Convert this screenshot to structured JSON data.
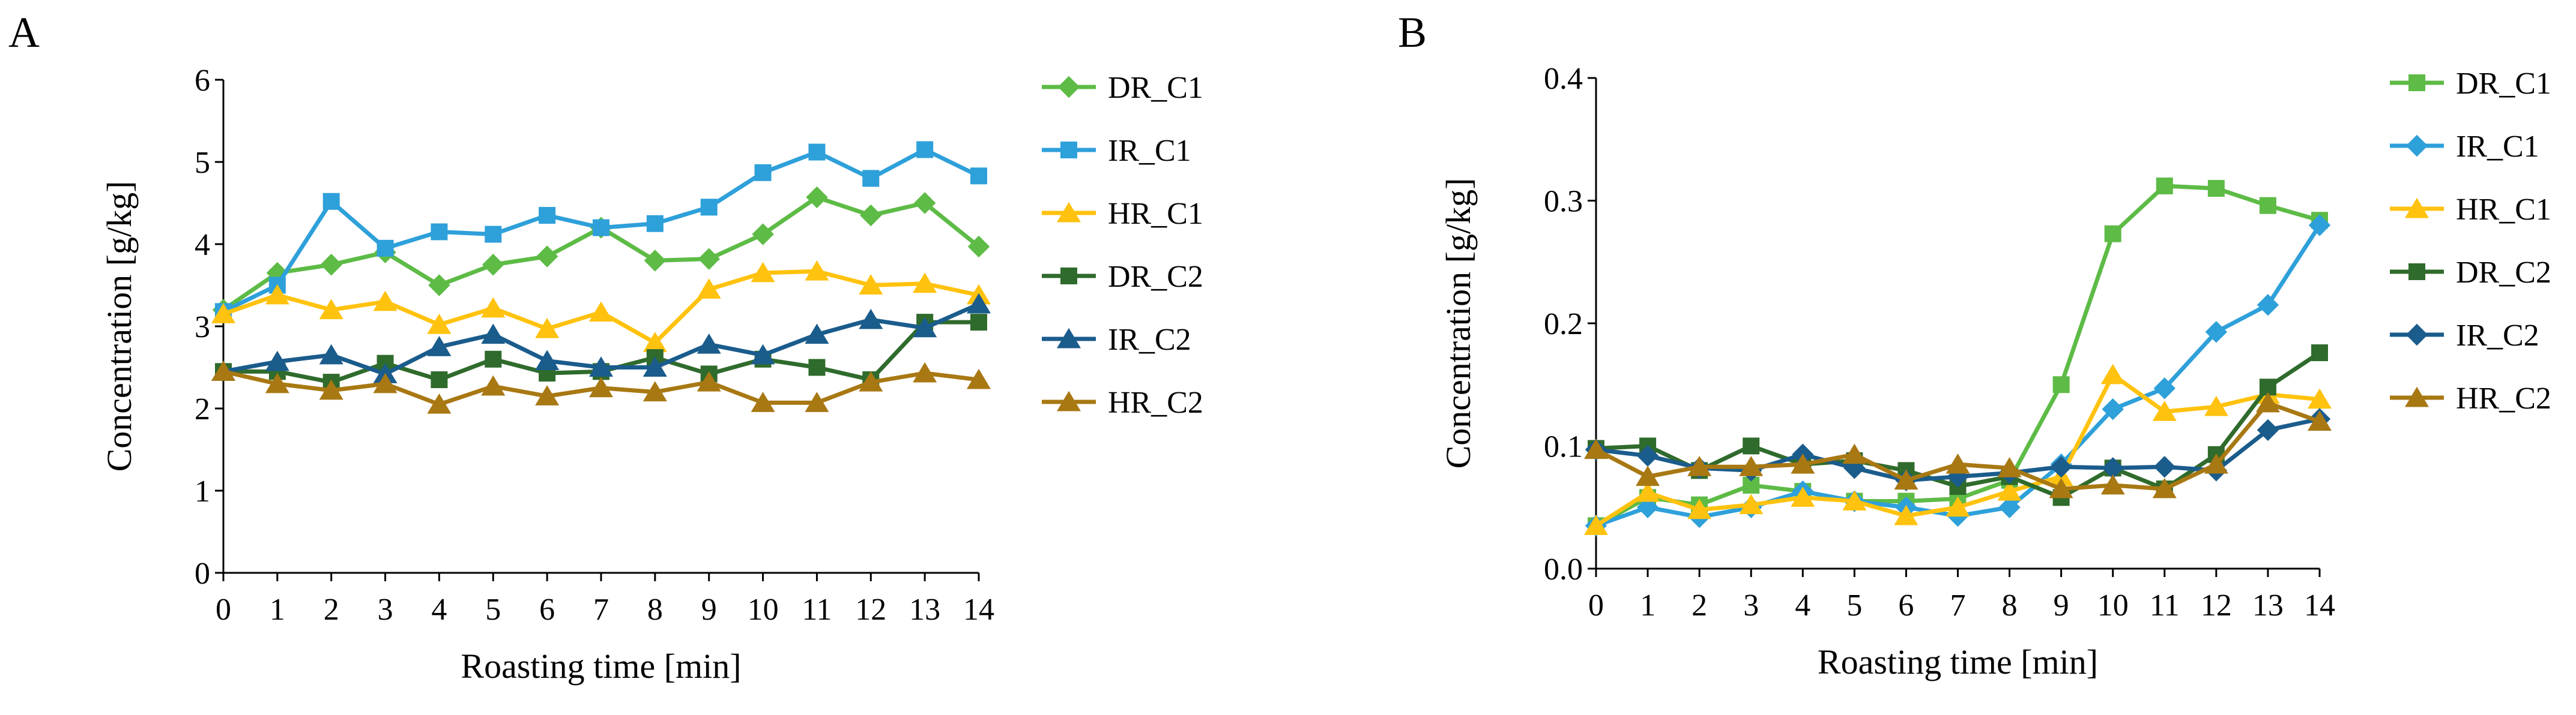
{
  "chart_data": [
    {
      "panel_label": "A",
      "type": "line",
      "xlabel": "Roasting time [min]",
      "ylabel": "Concentration [g/kg]",
      "x": [
        0,
        1,
        2,
        3,
        4,
        5,
        6,
        7,
        8,
        9,
        10,
        11,
        12,
        13,
        14
      ],
      "xlim": [
        0,
        14
      ],
      "ylim": [
        0,
        6
      ],
      "yticks": [
        0,
        1,
        2,
        3,
        4,
        5,
        6
      ],
      "ytick_labels": [
        "0",
        "1",
        "2",
        "3",
        "4",
        "5",
        "6"
      ],
      "grid": false,
      "legend_position": "right",
      "series": [
        {
          "name": "DR_C1",
          "color": "#5DBB46",
          "marker": "diamond",
          "values": [
            3.2,
            3.65,
            3.75,
            3.9,
            3.5,
            3.75,
            3.85,
            4.2,
            3.8,
            3.82,
            4.12,
            4.57,
            4.35,
            4.5,
            3.97
          ]
        },
        {
          "name": "IR_C1",
          "color": "#2EA0DA",
          "marker": "square",
          "values": [
            3.18,
            3.5,
            4.52,
            3.95,
            4.15,
            4.12,
            4.35,
            4.2,
            4.25,
            4.45,
            4.87,
            5.12,
            4.8,
            5.15,
            4.83
          ]
        },
        {
          "name": "HR_C1",
          "color": "#FFC20E",
          "marker": "triangle",
          "values": [
            3.15,
            3.38,
            3.2,
            3.3,
            3.02,
            3.22,
            2.97,
            3.17,
            2.8,
            3.45,
            3.65,
            3.67,
            3.5,
            3.52,
            3.38
          ]
        },
        {
          "name": "DR_C2",
          "color": "#2F6B2C",
          "marker": "square",
          "values": [
            2.45,
            2.45,
            2.32,
            2.55,
            2.35,
            2.6,
            2.43,
            2.45,
            2.62,
            2.42,
            2.6,
            2.5,
            2.35,
            3.05,
            3.05
          ]
        },
        {
          "name": "IR_C2",
          "color": "#1A5C8C",
          "marker": "triangle",
          "values": [
            2.45,
            2.57,
            2.65,
            2.42,
            2.75,
            2.9,
            2.58,
            2.5,
            2.5,
            2.78,
            2.65,
            2.9,
            3.08,
            2.98,
            3.27
          ]
        },
        {
          "name": "HR_C2",
          "color": "#A87813",
          "marker": "triangle",
          "values": [
            2.45,
            2.3,
            2.22,
            2.3,
            2.05,
            2.27,
            2.15,
            2.25,
            2.2,
            2.32,
            2.07,
            2.07,
            2.32,
            2.43,
            2.35
          ]
        }
      ]
    },
    {
      "panel_label": "B",
      "type": "line",
      "xlabel": "Roasting time [min]",
      "ylabel": "Concentration [g/kg]",
      "x": [
        0,
        1,
        2,
        3,
        4,
        5,
        6,
        7,
        8,
        9,
        10,
        11,
        12,
        13,
        14
      ],
      "xlim": [
        0,
        14
      ],
      "ylim": [
        0,
        0.4
      ],
      "yticks": [
        0,
        0.1,
        0.2,
        0.3,
        0.4
      ],
      "ytick_labels": [
        "0.0",
        "0.1",
        "0.2",
        "0.3",
        "0.4"
      ],
      "grid": false,
      "legend_position": "right",
      "series": [
        {
          "name": "DR_C1",
          "color": "#5DBB46",
          "marker": "square",
          "values": [
            0.035,
            0.058,
            0.052,
            0.068,
            0.063,
            0.055,
            0.055,
            0.057,
            0.072,
            0.15,
            0.273,
            0.312,
            0.31,
            0.296,
            0.284
          ]
        },
        {
          "name": "IR_C1",
          "color": "#2EA0DA",
          "marker": "diamond",
          "values": [
            0.035,
            0.05,
            0.042,
            0.05,
            0.063,
            0.055,
            0.05,
            0.043,
            0.05,
            0.085,
            0.13,
            0.147,
            0.193,
            0.215,
            0.28
          ]
        },
        {
          "name": "HR_C1",
          "color": "#FFC20E",
          "marker": "triangle",
          "values": [
            0.035,
            0.062,
            0.048,
            0.052,
            0.058,
            0.055,
            0.043,
            0.05,
            0.063,
            0.075,
            0.158,
            0.128,
            0.132,
            0.142,
            0.138
          ]
        },
        {
          "name": "DR_C2",
          "color": "#2F6B2C",
          "marker": "square",
          "values": [
            0.098,
            0.1,
            0.08,
            0.1,
            0.085,
            0.088,
            0.08,
            0.067,
            0.075,
            0.058,
            0.082,
            0.065,
            0.093,
            0.148,
            0.176
          ]
        },
        {
          "name": "IR_C2",
          "color": "#1A5C8C",
          "marker": "diamond",
          "values": [
            0.097,
            0.092,
            0.082,
            0.08,
            0.093,
            0.082,
            0.072,
            0.075,
            0.078,
            0.083,
            0.082,
            0.083,
            0.08,
            0.113,
            0.122
          ]
        },
        {
          "name": "HR_C2",
          "color": "#A87813",
          "marker": "triangle",
          "values": [
            0.097,
            0.075,
            0.083,
            0.083,
            0.085,
            0.093,
            0.072,
            0.085,
            0.082,
            0.065,
            0.068,
            0.065,
            0.085,
            0.135,
            0.12
          ]
        }
      ]
    }
  ]
}
